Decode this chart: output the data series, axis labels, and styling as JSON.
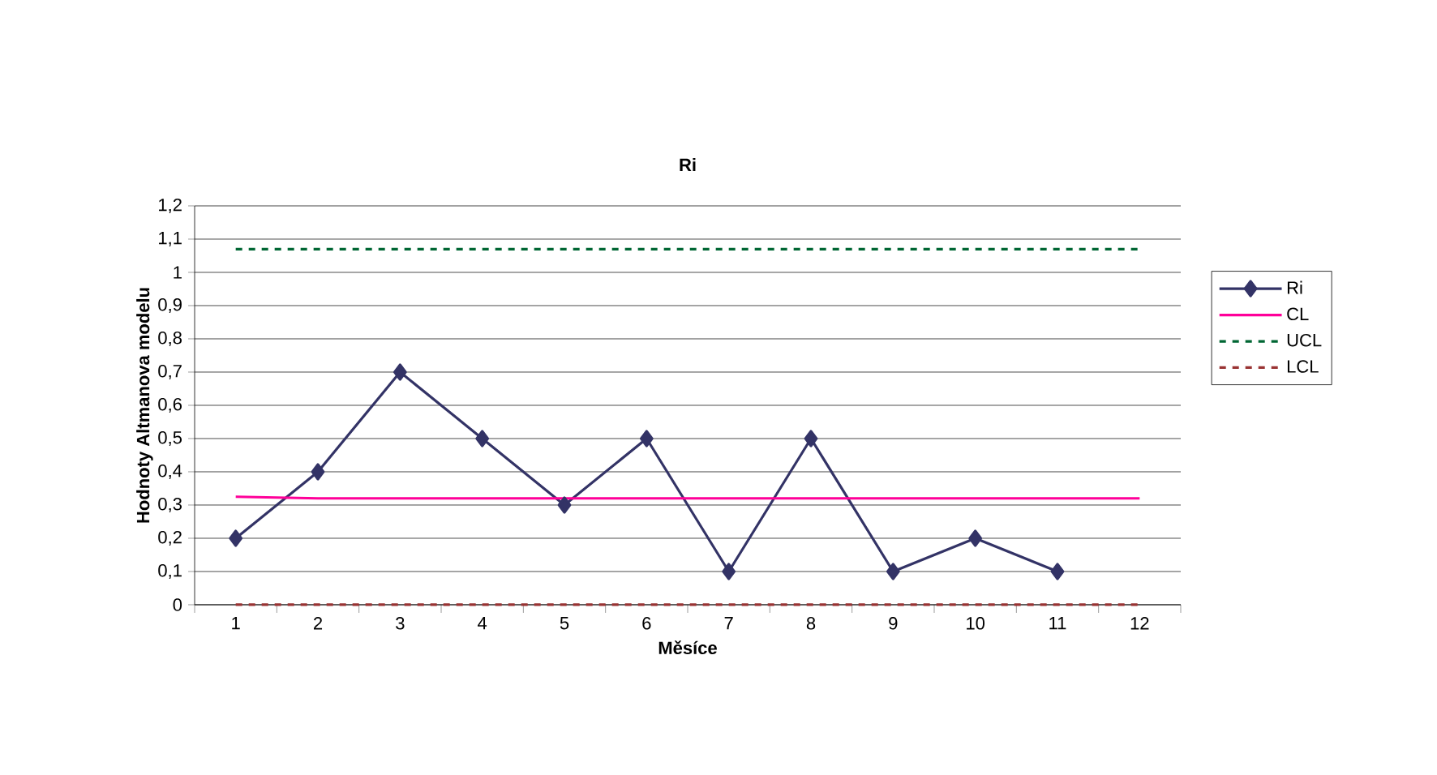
{
  "chart_data": {
    "type": "line",
    "title": "Ri",
    "xlabel": "Měsíce",
    "ylabel": "Hodnoty Altmanova modelu",
    "categories": [
      "1",
      "2",
      "3",
      "4",
      "5",
      "6",
      "7",
      "8",
      "9",
      "10",
      "11",
      "12"
    ],
    "series": [
      {
        "name": "Ri",
        "color": "#333366",
        "marker": "diamond",
        "line_style": "solid",
        "values": [
          0.2,
          0.4,
          0.7,
          0.5,
          0.3,
          0.5,
          0.1,
          0.5,
          0.1,
          0.2,
          0.1,
          null
        ]
      },
      {
        "name": "CL",
        "color": "#ff0099",
        "marker": "none",
        "line_style": "solid",
        "values": [
          0.325,
          0.32,
          0.32,
          0.32,
          0.32,
          0.32,
          0.32,
          0.32,
          0.32,
          0.32,
          0.32,
          0.32
        ]
      },
      {
        "name": "UCL",
        "color": "#006633",
        "marker": "none",
        "line_style": "dashed",
        "values": [
          1.07,
          1.07,
          1.07,
          1.07,
          1.07,
          1.07,
          1.07,
          1.07,
          1.07,
          1.07,
          1.07,
          1.07
        ]
      },
      {
        "name": "LCL",
        "color": "#993333",
        "marker": "none",
        "line_style": "dashed",
        "values": [
          0,
          0,
          0,
          0,
          0,
          0,
          0,
          0,
          0,
          0,
          0,
          0
        ]
      }
    ],
    "ylim": [
      0,
      1.2
    ],
    "yticks": [
      0,
      {
        "value": 0.1,
        "label": "0,1"
      },
      {
        "value": 0.2,
        "label": "0,2"
      },
      {
        "value": 0.3,
        "label": "0,3"
      },
      {
        "value": 0.4,
        "label": "0,4"
      },
      {
        "value": 0.5,
        "label": "0,5"
      },
      {
        "value": 0.6,
        "label": "0,6"
      },
      {
        "value": 0.7,
        "label": "0,7"
      },
      {
        "value": 0.8,
        "label": "0,8"
      },
      {
        "value": 0.9,
        "label": "0,9"
      },
      1,
      {
        "value": 1.1,
        "label": "1,1"
      },
      {
        "value": 1.2,
        "label": "1,2"
      }
    ],
    "grid": "y",
    "legend": "right"
  }
}
